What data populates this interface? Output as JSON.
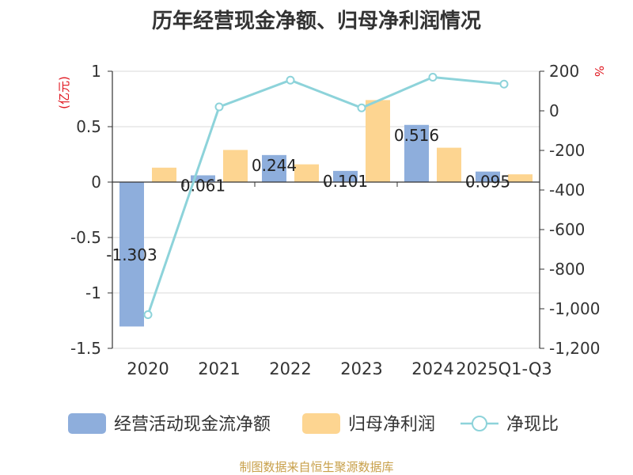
{
  "title": "历年经营现金净额、归母净利润情况",
  "source": "制图数据来自恒生聚源数据库",
  "chart_data": {
    "type": "bar",
    "categories": [
      "2020",
      "2021",
      "2022",
      "2023",
      "2024",
      "2025Q1-Q3"
    ],
    "left_axis": {
      "unit": "(亿元)",
      "ylim": [
        -1.5,
        1
      ],
      "ticks": [
        1,
        0.5,
        0,
        -0.5,
        -1,
        -1.5
      ],
      "tick_labels": [
        "1",
        "0.5",
        "0",
        "-0.5",
        "-1",
        "-1.5"
      ]
    },
    "right_axis": {
      "unit": "%",
      "ylim": [
        -1200,
        200
      ],
      "ticks": [
        200,
        0,
        -200,
        -400,
        -600,
        -800,
        -1000,
        -1200
      ],
      "tick_labels": [
        "200",
        "0",
        "-200",
        "-400",
        "-600",
        "-800",
        "-1,000",
        "-1,200"
      ]
    },
    "series": [
      {
        "name": "经营活动现金流净额",
        "type": "bar",
        "axis": "left",
        "color": "#8eaedc",
        "values": [
          -1.303,
          0.061,
          0.244,
          0.101,
          0.516,
          0.095
        ],
        "labels": [
          "-1.303",
          "0.061",
          "0.244",
          "0.101",
          "0.516",
          "0.095"
        ]
      },
      {
        "name": "归母净利润",
        "type": "bar",
        "axis": "left",
        "color": "#fdd591",
        "values": [
          0.13,
          0.29,
          0.16,
          0.74,
          0.31,
          0.07
        ]
      },
      {
        "name": "净现比",
        "type": "line",
        "axis": "right",
        "color": "#8dd3da",
        "values": [
          -1030,
          20,
          155,
          15,
          170,
          135
        ]
      }
    ],
    "grid": true,
    "legend_position": "bottom"
  }
}
